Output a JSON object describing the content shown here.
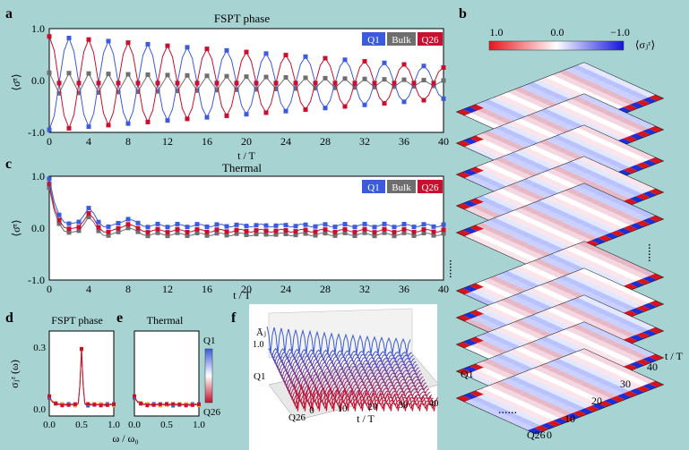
{
  "panel_letters": {
    "a": "a",
    "b": "b",
    "c": "c",
    "d": "d",
    "e": "e",
    "f": "f"
  },
  "colors": {
    "background": "#a7d3d3",
    "q1": "#3b5bdb",
    "bulk": "#6e6e6e",
    "q26": "#c8102e"
  },
  "chart_data": [
    {
      "panel": "a",
      "type": "line",
      "title": "FSPT phase",
      "xlabel": "t / T",
      "ylabel": "⟨σ̄ᶻ⟩",
      "xlim": [
        0,
        40
      ],
      "ylim": [
        -1,
        1
      ],
      "xticks": [
        "0",
        "4",
        "8",
        "12",
        "16",
        "20",
        "24",
        "28",
        "32",
        "36",
        "40"
      ],
      "yticks": [
        "1.0",
        "0.0",
        "-1.0"
      ],
      "legend": [
        "Q1",
        "Bulk",
        "Q26"
      ],
      "legend_placement": "top-right",
      "series": [
        {
          "name": "Q1",
          "color": "#3b5bdb",
          "amplitude_start": 0.9,
          "amplitude_end": 0.3,
          "period": 4
        },
        {
          "name": "Bulk",
          "color": "#6e6e6e",
          "amplitude_start": 0.2,
          "amplitude_end": 0.05,
          "period": 2
        },
        {
          "name": "Q26",
          "color": "#c8102e",
          "amplitude_start": 0.9,
          "amplitude_end": 0.3,
          "period": 4
        }
      ]
    },
    {
      "panel": "c",
      "type": "line",
      "title": "Thermal",
      "xlabel": "t / T",
      "ylabel": "⟨σ̄ᶻ⟩",
      "xlim": [
        0,
        40
      ],
      "ylim": [
        -1,
        1
      ],
      "xticks": [
        "0",
        "4",
        "8",
        "12",
        "16",
        "20",
        "24",
        "28",
        "32",
        "36",
        "40"
      ],
      "yticks": [
        "1.0",
        "0.0",
        "-1.0"
      ],
      "legend": [
        "Q1",
        "Bulk",
        "Q26"
      ],
      "legend_placement": "top-right",
      "series": [
        {
          "name": "Q1",
          "color": "#3b5bdb",
          "values_shape": "decay to ~0.05"
        },
        {
          "name": "Bulk",
          "color": "#6e6e6e",
          "values_shape": "decay to ~-0.1"
        },
        {
          "name": "Q26",
          "color": "#c8102e",
          "values_shape": "decay to ~-0.05"
        }
      ]
    },
    {
      "panel": "b",
      "type": "heatmap",
      "colorbar_labels": [
        "1.0",
        "0.0",
        "−1.0"
      ],
      "colorbar_title": "⟨σⱼᶻ⟩",
      "axis_labels": {
        "t": "t / T",
        "t_ticks": [
          "10",
          "20",
          "30",
          "40"
        ],
        "q_top": "Q1",
        "q_bottom": "Q26",
        "q_origin": "0"
      }
    },
    {
      "panel": "d",
      "type": "line",
      "title": "FSPT phase",
      "ylabel": "σⱼᶻ (ω)",
      "yticks": [
        "0.3",
        "0.0"
      ],
      "xticks": [
        "0.0",
        "0.5",
        "1.0"
      ]
    },
    {
      "panel": "e",
      "type": "line",
      "title": "Thermal",
      "xticks": [
        "0.0",
        "0.5",
        "1.0"
      ],
      "xlabel": "ω / ω₀",
      "colorbar_labels": [
        "Q1",
        "Q26"
      ]
    },
    {
      "panel": "f",
      "type": "line",
      "zlabel": "Āⱼ",
      "ztick": "1.0",
      "xlabel": "t / T",
      "xticks": [
        "0",
        "10",
        "20",
        "30",
        "40"
      ],
      "q_labels": [
        "Q1",
        "Q26"
      ]
    }
  ],
  "dots": "......"
}
